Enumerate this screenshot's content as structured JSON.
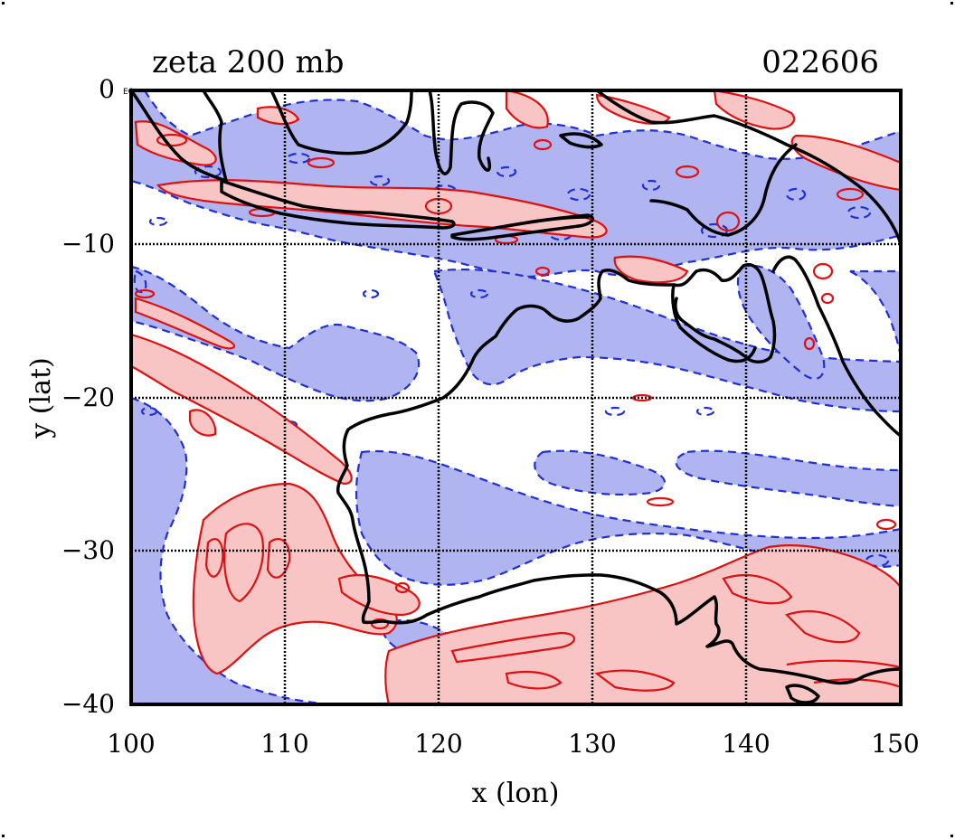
{
  "header": {
    "title": "zeta 200 mb",
    "date_code": "022606"
  },
  "axes": {
    "xlabel": "x (lon)",
    "ylabel": "y (lat)",
    "x_ticks": [
      "100",
      "110",
      "120",
      "130",
      "140",
      "150"
    ],
    "y_ticks": [
      "0",
      "−10",
      "−20",
      "−30",
      "−40"
    ],
    "corner_tag": "EQ",
    "xlim": [
      100,
      150
    ],
    "ylim": [
      -40,
      0
    ],
    "grid": true
  },
  "legend_colors": {
    "positive_fill": "#f8c4c4",
    "positive_line": "#e01010",
    "negative_fill": "#b0b4f0",
    "negative_line": "#1f2fd6",
    "coastline": "#000000"
  }
}
